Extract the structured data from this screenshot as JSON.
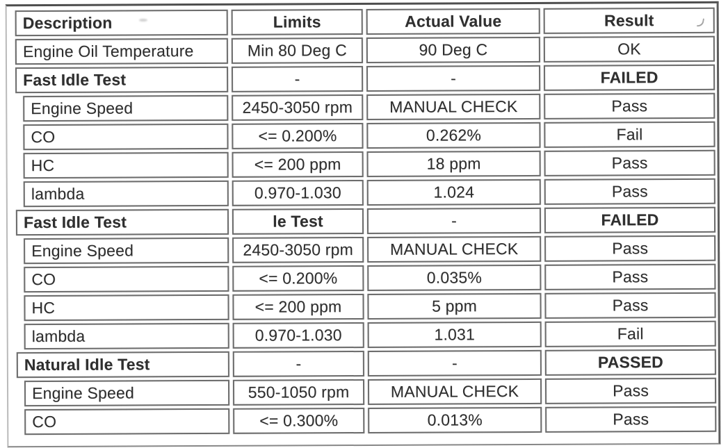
{
  "document": {
    "kind": "scanned-emissions-test-results-table",
    "colors": {
      "text": "#2f2f2f",
      "cell_border": "#6c6c6c",
      "background": "#ffffff"
    }
  },
  "table": {
    "columns": [
      "Description",
      "Limits",
      "Actual Value",
      "Result"
    ],
    "rows": [
      {
        "description": "Engine Oil Temperature",
        "limits": "Min 80 Deg C",
        "actual": "90 Deg C",
        "result": "OK",
        "style": "data"
      },
      {
        "description": "Fast Idle Test",
        "limits": "-",
        "actual": "-",
        "result": "FAILED",
        "style": "section"
      },
      {
        "description": "Engine Speed",
        "limits": "2450-3050 rpm",
        "actual": "MANUAL CHECK",
        "result": "Pass",
        "style": "sub"
      },
      {
        "description": "CO",
        "limits": "<= 0.200%",
        "actual": "0.262%",
        "result": "Fail",
        "style": "sub"
      },
      {
        "description": "HC",
        "limits": "<= 200 ppm",
        "actual": "18 ppm",
        "result": "Pass",
        "style": "sub"
      },
      {
        "description": "lambda",
        "limits": "0.970-1.030",
        "actual": "1.024",
        "result": "Pass",
        "style": "sub"
      },
      {
        "description": "Fast Idle Test",
        "limits": "le Test",
        "actual": "-",
        "result": "FAILED",
        "style": "section",
        "limits_bold": true
      },
      {
        "description": "Engine Speed",
        "limits": "2450-3050 rpm",
        "actual": "MANUAL CHECK",
        "result": "Pass",
        "style": "sub"
      },
      {
        "description": "CO",
        "limits": "<= 0.200%",
        "actual": "0.035%",
        "result": "Pass",
        "style": "sub"
      },
      {
        "description": "HC",
        "limits": "<= 200 ppm",
        "actual": "5 ppm",
        "result": "Pass",
        "style": "sub"
      },
      {
        "description": "lambda",
        "limits": "0.970-1.030",
        "actual": "1.031",
        "result": "Fail",
        "style": "sub"
      },
      {
        "description": "Natural Idle Test",
        "limits": "-",
        "actual": "-",
        "result": "PASSED",
        "style": "section"
      },
      {
        "description": "Engine Speed",
        "limits": "550-1050 rpm",
        "actual": "MANUAL CHECK",
        "result": "Pass",
        "style": "sub"
      },
      {
        "description": "CO",
        "limits": "<= 0.300%",
        "actual": "0.013%",
        "result": "Pass",
        "style": "sub"
      }
    ]
  }
}
